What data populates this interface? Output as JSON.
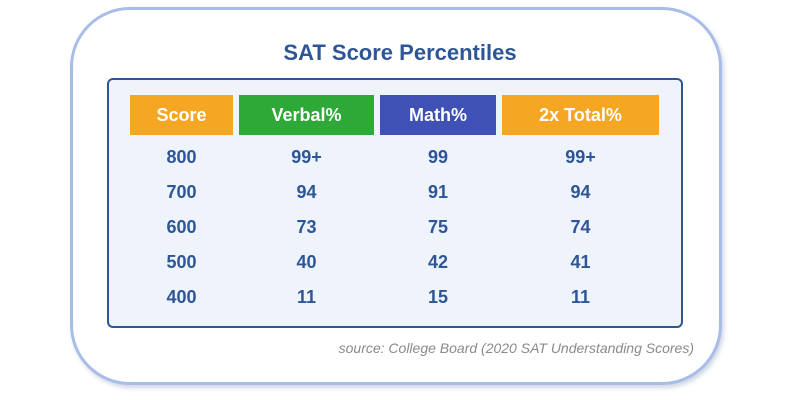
{
  "title": "SAT Score Percentiles",
  "colors": {
    "score_header": "#f5a623",
    "verbal_header": "#2ea836",
    "math_header": "#3f51b5",
    "total_header": "#f5a623",
    "text": "#2e5696"
  },
  "table": {
    "headers": [
      "Score",
      "Verbal%",
      "Math%",
      "2x Total%"
    ],
    "rows": [
      [
        "800",
        "99+",
        "99",
        "99+"
      ],
      [
        "700",
        "94",
        "91",
        "94"
      ],
      [
        "600",
        "73",
        "75",
        "74"
      ],
      [
        "500",
        "40",
        "42",
        "41"
      ],
      [
        "400",
        "11",
        "15",
        "11"
      ]
    ]
  },
  "source": "source: College Board (2020 SAT Understanding Scores)"
}
